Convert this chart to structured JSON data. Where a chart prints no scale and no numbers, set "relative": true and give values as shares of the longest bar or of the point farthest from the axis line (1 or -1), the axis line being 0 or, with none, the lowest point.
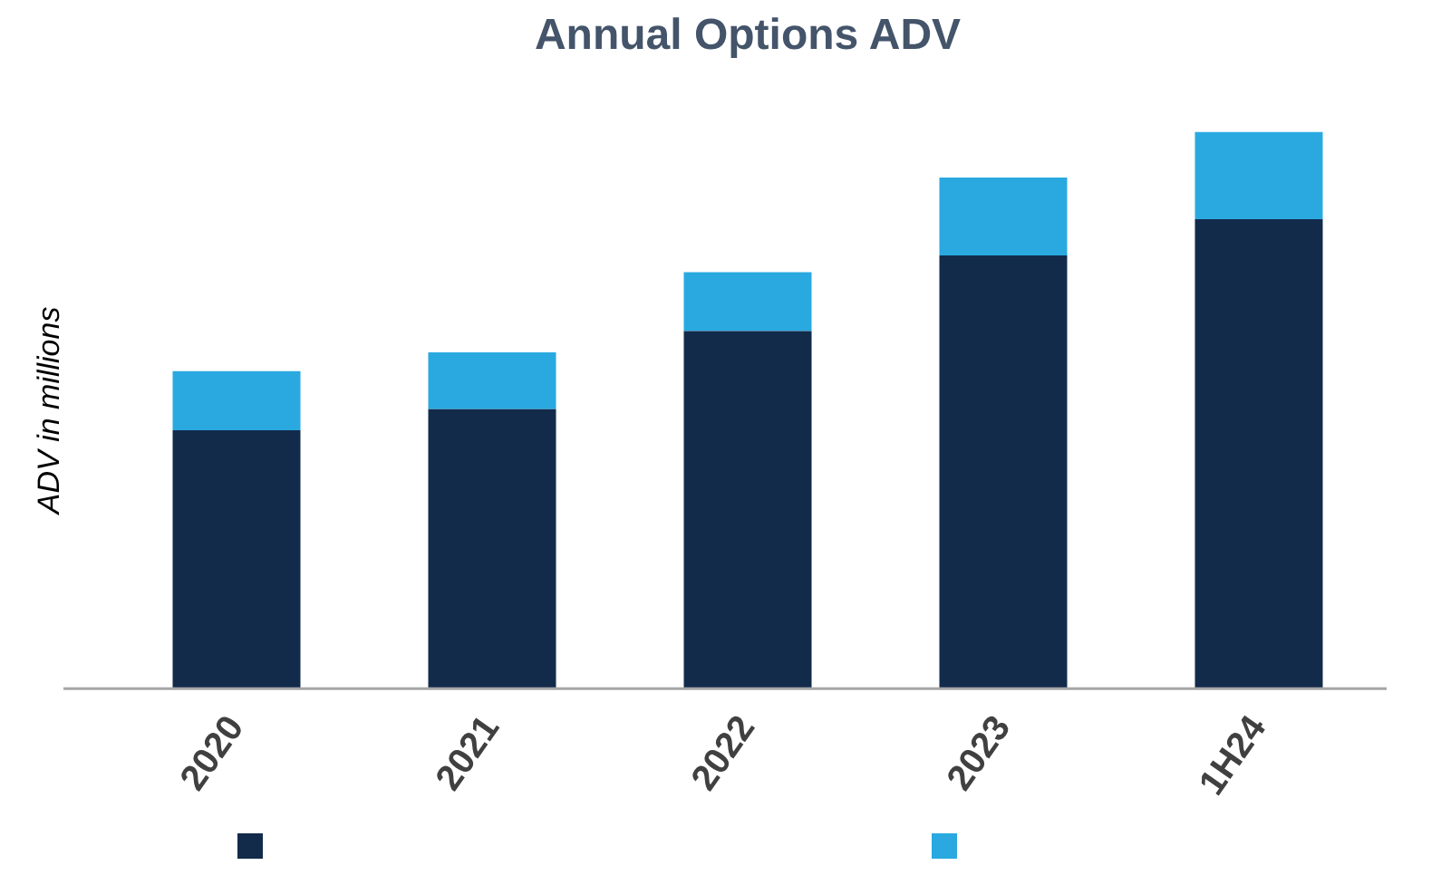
{
  "chart_data": {
    "type": "bar",
    "title": "Annual Options ADV",
    "ylabel": "ADV in millions",
    "categories": [
      "2020",
      "2021",
      "2022",
      "2023",
      "1H24"
    ],
    "stacked": true,
    "relative": true,
    "series": [
      {
        "color": "#132b4b",
        "values": [
          0.464,
          0.502,
          0.642,
          0.778,
          0.843
        ]
      },
      {
        "color": "#29a9e0",
        "values": [
          0.106,
          0.102,
          0.106,
          0.14,
          0.157
        ]
      }
    ]
  }
}
